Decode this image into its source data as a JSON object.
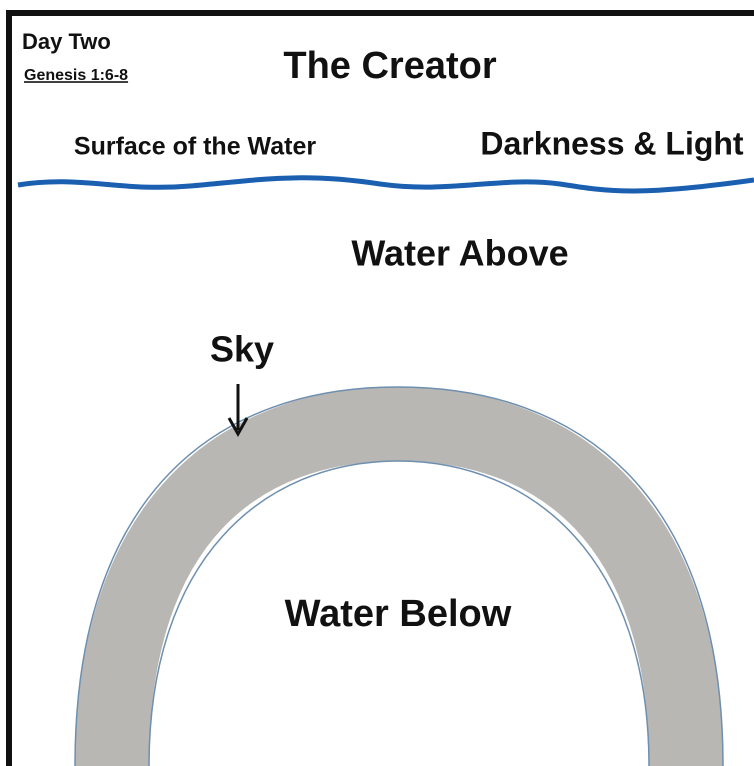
{
  "header": {
    "day": "Day Two",
    "reference": "Genesis 1:6-8",
    "title": "The Creator"
  },
  "labels": {
    "surface": "Surface of the Water",
    "darkness": "Darkness & Light",
    "water_above": "Water Above",
    "sky": "Sky",
    "water_below": "Water Below"
  }
}
